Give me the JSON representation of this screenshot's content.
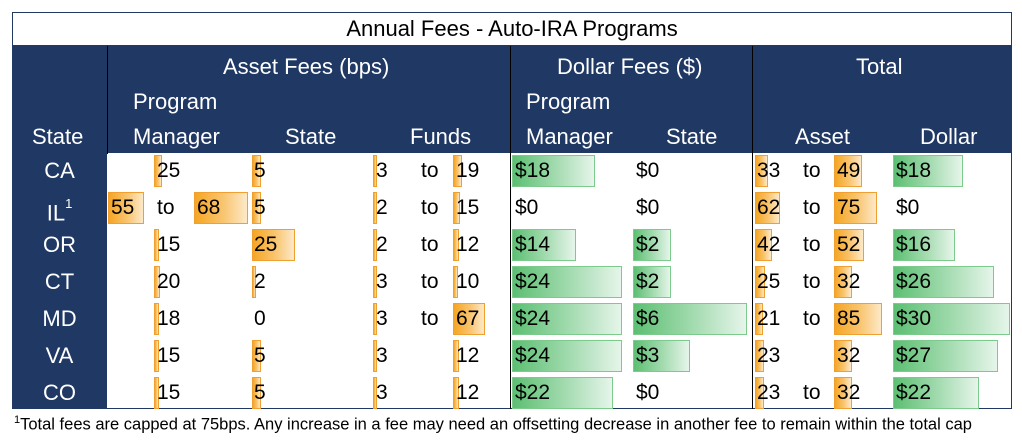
{
  "title": "Annual Fees - Auto-IRA Programs",
  "header": {
    "asset_fees": "Asset Fees (bps)",
    "dollar_fees": "Dollar Fees ($)",
    "total": "Total",
    "program_1": "Program",
    "program_2": "Program",
    "state": "State",
    "manager_1": "Manager",
    "state_asset": "State",
    "funds": "Funds",
    "manager_2": "Manager",
    "state_dollar": "State",
    "asset": "Asset",
    "dollar": "Dollar"
  },
  "to_word": "to",
  "footnote_mark": "1",
  "footnote_text": "Total fees are capped at 75bps. Any increase in a fee may need an offsetting decrease in another fee to remain within the total cap",
  "rows": [
    {
      "state": "CA",
      "sup": "",
      "pm_low": "",
      "pm_high": "25",
      "st": "5",
      "fund_low": "3",
      "fund_high": "19",
      "d_pm": "$18",
      "d_st": "$0",
      "tot_low": "33",
      "tot_high": "49",
      "tot_d": "$18"
    },
    {
      "state": "IL",
      "sup": "1",
      "pm_low": "55",
      "pm_high": "68",
      "st": "5",
      "fund_low": "2",
      "fund_high": "15",
      "d_pm": "$0",
      "d_st": "$0",
      "tot_low": "62",
      "tot_high": "75",
      "tot_d": "$0"
    },
    {
      "state": "OR",
      "sup": "",
      "pm_low": "",
      "pm_high": "15",
      "st": "25",
      "fund_low": "2",
      "fund_high": "12",
      "d_pm": "$14",
      "d_st": "$2",
      "tot_low": "42",
      "tot_high": "52",
      "tot_d": "$16"
    },
    {
      "state": "CT",
      "sup": "",
      "pm_low": "",
      "pm_high": "20",
      "st": "2",
      "fund_low": "3",
      "fund_high": "10",
      "d_pm": "$24",
      "d_st": "$2",
      "tot_low": "25",
      "tot_high": "32",
      "tot_d": "$26"
    },
    {
      "state": "MD",
      "sup": "",
      "pm_low": "",
      "pm_high": "18",
      "st": "0",
      "fund_low": "3",
      "fund_high": "67",
      "d_pm": "$24",
      "d_st": "$6",
      "tot_low": "21",
      "tot_high": "85",
      "tot_d": "$30"
    },
    {
      "state": "VA",
      "sup": "",
      "pm_low": "",
      "pm_high": "15",
      "st": "5",
      "fund_low": "3",
      "fund_high": "12",
      "d_pm": "$24",
      "d_st": "$3",
      "tot_low": "23",
      "tot_high": "32",
      "tot_d": "$27"
    },
    {
      "state": "CO",
      "sup": "",
      "pm_low": "",
      "pm_high": "15",
      "st": "5",
      "fund_low": "3",
      "fund_high": "12",
      "d_pm": "$22",
      "d_st": "$0",
      "tot_low": "23",
      "tot_high": "32",
      "tot_d": "$22"
    }
  ],
  "row_flags": [
    {
      "fund_to": true,
      "tot_to": true
    },
    {
      "fund_to": true,
      "tot_to": true
    },
    {
      "fund_to": true,
      "tot_to": true
    },
    {
      "fund_to": true,
      "tot_to": true
    },
    {
      "fund_to": true,
      "tot_to": true
    },
    {
      "fund_to": false,
      "tot_to": false
    },
    {
      "fund_to": false,
      "tot_to": true
    }
  ],
  "colors": {
    "header_bg": "#203864",
    "asset_bar": "#f5a623",
    "dollar_bar": "#5cbf72"
  }
}
